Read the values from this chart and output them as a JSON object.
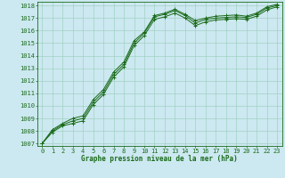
{
  "x": [
    0,
    1,
    2,
    3,
    4,
    5,
    6,
    7,
    8,
    9,
    10,
    11,
    12,
    13,
    14,
    15,
    16,
    17,
    18,
    19,
    20,
    21,
    22,
    23
  ],
  "series": {
    "main": [
      1007.0,
      1008.0,
      1008.5,
      1008.8,
      1009.0,
      1010.3,
      1011.1,
      1012.5,
      1013.3,
      1015.0,
      1015.8,
      1017.1,
      1017.3,
      1017.6,
      1017.2,
      1016.6,
      1016.9,
      1017.0,
      1017.05,
      1017.1,
      1017.05,
      1017.3,
      1017.8,
      1018.0
    ],
    "high": [
      1007.0,
      1008.1,
      1008.6,
      1009.0,
      1009.2,
      1010.5,
      1011.3,
      1012.7,
      1013.5,
      1015.2,
      1015.9,
      1017.2,
      1017.4,
      1017.7,
      1017.3,
      1016.8,
      1017.0,
      1017.15,
      1017.2,
      1017.25,
      1017.15,
      1017.4,
      1017.9,
      1018.1
    ],
    "low": [
      1007.0,
      1007.9,
      1008.4,
      1008.6,
      1008.8,
      1010.1,
      1010.9,
      1012.3,
      1013.1,
      1014.8,
      1015.6,
      1016.9,
      1017.1,
      1017.4,
      1017.0,
      1016.4,
      1016.7,
      1016.85,
      1016.9,
      1016.95,
      1016.9,
      1017.15,
      1017.65,
      1017.9
    ]
  },
  "ylim": [
    1007,
    1018
  ],
  "yticks": [
    1007,
    1008,
    1009,
    1010,
    1011,
    1012,
    1013,
    1014,
    1015,
    1016,
    1017,
    1018
  ],
  "xlim": [
    0,
    23
  ],
  "xticks": [
    0,
    1,
    2,
    3,
    4,
    5,
    6,
    7,
    8,
    9,
    10,
    11,
    12,
    13,
    14,
    15,
    16,
    17,
    18,
    19,
    20,
    21,
    22,
    23
  ],
  "line_color": "#1a6b1a",
  "bg_color": "#cce8f0",
  "grid_color": "#99ccbb",
  "xlabel": "Graphe pression niveau de la mer (hPa)",
  "xlabel_color": "#1a6b1a",
  "marker": "+",
  "linewidth": 0.7,
  "markersize": 3.5,
  "tick_fontsize": 5.0,
  "xlabel_fontsize": 5.5
}
